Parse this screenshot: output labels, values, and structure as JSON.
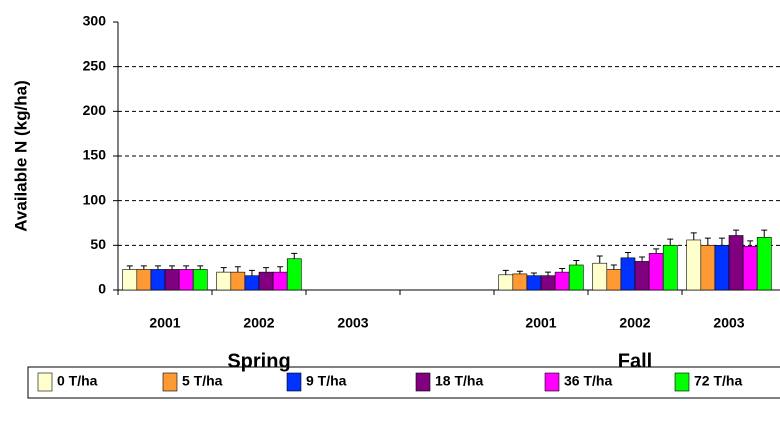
{
  "chart_data": {
    "type": "bar",
    "y_label": "Available N (kg/ha)",
    "categories": [
      "2001",
      "2002",
      "2003",
      null,
      "2001",
      "2002",
      "2003"
    ],
    "annotations": [
      "Spring",
      "Fall"
    ],
    "series": [
      {
        "name": "0 T/ha",
        "color": "#ffffcc",
        "values": [
          23,
          20,
          0,
          null,
          17,
          30,
          56
        ],
        "errors": [
          4,
          5,
          0,
          null,
          5,
          8,
          8
        ]
      },
      {
        "name": "5 T/ha",
        "color": "#ff9933",
        "values": [
          23,
          20,
          0,
          null,
          18,
          23,
          50
        ],
        "errors": [
          4,
          6,
          0,
          null,
          3,
          5,
          8
        ]
      },
      {
        "name": "9 T/ha",
        "color": "#0033ff",
        "values": [
          23,
          16,
          0,
          null,
          16,
          36,
          50
        ],
        "errors": [
          4,
          6,
          0,
          null,
          3,
          6,
          8
        ]
      },
      {
        "name": "18 T/ha",
        "color": "#800080",
        "values": [
          23,
          20,
          0,
          null,
          16,
          32,
          61
        ],
        "errors": [
          4,
          5,
          0,
          null,
          4,
          5,
          6
        ]
      },
      {
        "name": "36 T/ha",
        "color": "#ff00ff",
        "values": [
          23,
          20,
          0,
          null,
          20,
          41,
          49
        ],
        "errors": [
          4,
          6,
          0,
          null,
          4,
          5,
          6
        ]
      },
      {
        "name": "72 T/ha",
        "color": "#00ff00",
        "values": [
          23,
          35,
          0,
          null,
          28,
          50,
          59
        ],
        "errors": [
          4,
          6,
          0,
          null,
          5,
          7,
          8
        ]
      }
    ],
    "ylim": [
      0,
      300
    ],
    "yticks": [
      0,
      50,
      100,
      150,
      200,
      250,
      300
    ],
    "grid": true
  }
}
